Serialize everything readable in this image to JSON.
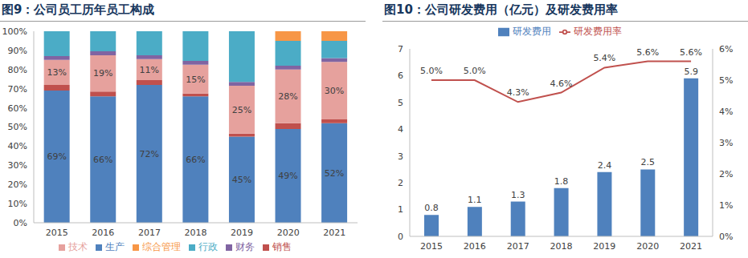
{
  "chart_data": [
    {
      "type": "bar",
      "title": "图9：公司员工历年员工构成",
      "stacked": true,
      "grid": false,
      "legend": "bottom",
      "categories": [
        "2015",
        "2016",
        "2017",
        "2018",
        "2019",
        "2020",
        "2021"
      ],
      "ylim": [
        0,
        100
      ],
      "yticks": [
        {
          "value": 0,
          "label": "0%"
        },
        {
          "value": 10,
          "label": "10%"
        },
        {
          "value": 20,
          "label": "20%"
        },
        {
          "value": 30,
          "label": "30%"
        },
        {
          "value": 40,
          "label": "40%"
        },
        {
          "value": 50,
          "label": "50%"
        },
        {
          "value": 60,
          "label": "60%"
        },
        {
          "value": 70,
          "label": "70%"
        },
        {
          "value": 80,
          "label": "80%"
        },
        {
          "value": 90,
          "label": "90%"
        },
        {
          "value": 100,
          "label": "100%"
        }
      ],
      "series": [
        {
          "name": "生产",
          "color": "#4f81bd",
          "values": [
            69,
            66,
            72,
            66,
            45,
            49,
            52
          ],
          "data_labels": true,
          "value_labels": [
            "69%",
            "66%",
            "72%",
            "66%",
            "45%",
            "49%",
            "52%"
          ]
        },
        {
          "name": "销售",
          "color": "#c0504d",
          "values": [
            3,
            2.5,
            2.5,
            1.5,
            1.5,
            3,
            2
          ]
        },
        {
          "name": "技术",
          "color": "#e6a19d",
          "values": [
            13,
            19,
            11,
            15,
            25,
            28,
            30
          ],
          "data_labels": true,
          "value_labels": [
            "13%",
            "19%",
            "11%",
            "15%",
            "25%",
            "28%",
            "30%"
          ]
        },
        {
          "name": "财务",
          "color": "#8064a2",
          "values": [
            2,
            2,
            2,
            2,
            2,
            2,
            2
          ]
        },
        {
          "name": "行政",
          "color": "#4bacc6",
          "values": [
            13,
            10.5,
            12.5,
            15.5,
            26.5,
            13,
            9
          ]
        },
        {
          "name": "综合管理",
          "color": "#f79646",
          "values": [
            0,
            0,
            0,
            0,
            0,
            5,
            5
          ]
        }
      ]
    },
    {
      "type": "bar",
      "title": "图10：公司研发费用（亿元）及研发费用率",
      "grid": false,
      "legend": "top",
      "categories": [
        "2015",
        "2016",
        "2017",
        "2018",
        "2019",
        "2020",
        "2021"
      ],
      "ylim": [
        0,
        7
      ],
      "yticks": [
        0,
        1,
        2,
        3,
        4,
        5,
        6,
        7
      ],
      "y2lim": [
        0,
        6
      ],
      "y2ticks": [
        {
          "value": 0,
          "label": "0%"
        },
        {
          "value": 1,
          "label": "1%"
        },
        {
          "value": 2,
          "label": "2%"
        },
        {
          "value": 3,
          "label": "3%"
        },
        {
          "value": 4,
          "label": "4%"
        },
        {
          "value": 5,
          "label": "5%"
        },
        {
          "value": 6,
          "label": "6%"
        }
      ],
      "series": [
        {
          "name": "研发费用",
          "type": "bar",
          "color": "#4f81bd",
          "values": [
            0.8,
            1.1,
            1.3,
            1.8,
            2.4,
            2.5,
            5.9
          ],
          "data_labels": true
        },
        {
          "name": "研发费用率",
          "type": "line",
          "axis": "y2",
          "color": "#c0504d",
          "marker": "none",
          "line_style": "solid",
          "values": [
            5.0,
            5.0,
            4.3,
            4.6,
            5.4,
            5.6,
            5.6
          ],
          "data_labels": true,
          "value_labels": [
            "5.0%",
            "5.0%",
            "4.3%",
            "4.6%",
            "5.4%",
            "5.6%",
            "5.6%"
          ]
        }
      ]
    }
  ]
}
